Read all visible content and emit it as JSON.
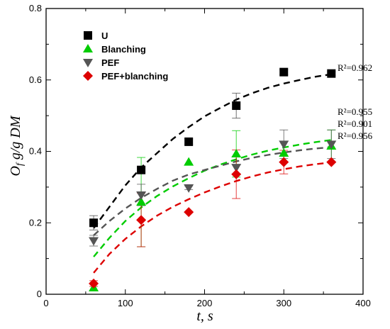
{
  "chart_data": {
    "type": "scatter",
    "xlabel": "t, s",
    "ylabel": "Of g/g DM",
    "ylabel_main": "O",
    "ylabel_sub": "f",
    "ylabel_rest": " g/g DM",
    "xlim": [
      0,
      400
    ],
    "ylim": [
      0,
      0.8
    ],
    "xticks": [
      "0",
      "100",
      "200",
      "300",
      "400"
    ],
    "yticks": [
      "0",
      "0.2",
      "0.4",
      "0.6",
      "0.8"
    ],
    "grid": false,
    "legend_position": "top-left",
    "series": [
      {
        "name": "U",
        "marker": "square",
        "color": "#000000",
        "x": [
          60,
          120,
          180,
          240,
          300,
          360
        ],
        "y": [
          0.2,
          0.348,
          0.427,
          0.528,
          0.622,
          0.618
        ],
        "err": [
          0.02,
          0.006,
          0.008,
          0.035,
          0.007,
          0.005
        ],
        "fit_x": [
          60,
          80,
          100,
          120,
          140,
          160,
          180,
          200,
          220,
          240,
          260,
          280,
          300,
          320,
          340,
          360
        ],
        "fit_y": [
          0.185,
          0.245,
          0.305,
          0.355,
          0.395,
          0.435,
          0.468,
          0.498,
          0.522,
          0.545,
          0.563,
          0.578,
          0.59,
          0.6,
          0.609,
          0.616
        ],
        "r2": "R²=0.962"
      },
      {
        "name": "Blanching",
        "marker": "triangle-up",
        "color": "#00cc00",
        "x": [
          60,
          120,
          180,
          240,
          300,
          360
        ],
        "y": [
          0.018,
          0.258,
          0.37,
          0.393,
          0.395,
          0.415
        ],
        "err": [
          0.0,
          0.125,
          0.0,
          0.065,
          0.0,
          0.045
        ],
        "fit_x": [
          60,
          80,
          100,
          120,
          140,
          160,
          180,
          200,
          220,
          240,
          260,
          280,
          300,
          320,
          340,
          360
        ],
        "fit_y": [
          0.105,
          0.158,
          0.205,
          0.243,
          0.275,
          0.302,
          0.325,
          0.346,
          0.363,
          0.378,
          0.391,
          0.402,
          0.411,
          0.419,
          0.426,
          0.432
        ],
        "r2": "R²=0.955"
      },
      {
        "name": "PEF",
        "marker": "triangle-down",
        "color": "#555555",
        "x": [
          60,
          120,
          180,
          240,
          300,
          360
        ],
        "y": [
          0.15,
          0.278,
          0.298,
          0.355,
          0.42,
          0.42
        ],
        "err": [
          0.015,
          0.03,
          0.005,
          0.0,
          0.04,
          0.04
        ],
        "fit_x": [
          60,
          80,
          100,
          120,
          140,
          160,
          180,
          200,
          220,
          240,
          260,
          280,
          300,
          320,
          340,
          360
        ],
        "fit_y": [
          0.165,
          0.205,
          0.24,
          0.27,
          0.295,
          0.318,
          0.335,
          0.348,
          0.36,
          0.372,
          0.382,
          0.39,
          0.397,
          0.403,
          0.408,
          0.412
        ],
        "r2": "R²=0.901"
      },
      {
        "name": "PEF+blanching",
        "marker": "diamond",
        "color": "#dd0000",
        "x": [
          60,
          120,
          180,
          240,
          300,
          360
        ],
        "y": [
          0.03,
          0.208,
          0.23,
          0.336,
          0.37,
          0.37
        ],
        "err": [
          0.008,
          0.075,
          0.0,
          0.068,
          0.033,
          0.0
        ],
        "fit_x": [
          60,
          80,
          100,
          120,
          140,
          160,
          180,
          200,
          220,
          240,
          260,
          280,
          300,
          320,
          340,
          360
        ],
        "fit_y": [
          0.06,
          0.113,
          0.155,
          0.19,
          0.22,
          0.245,
          0.266,
          0.285,
          0.302,
          0.317,
          0.33,
          0.341,
          0.35,
          0.358,
          0.364,
          0.369
        ],
        "r2": "R²=0.956"
      }
    ]
  }
}
